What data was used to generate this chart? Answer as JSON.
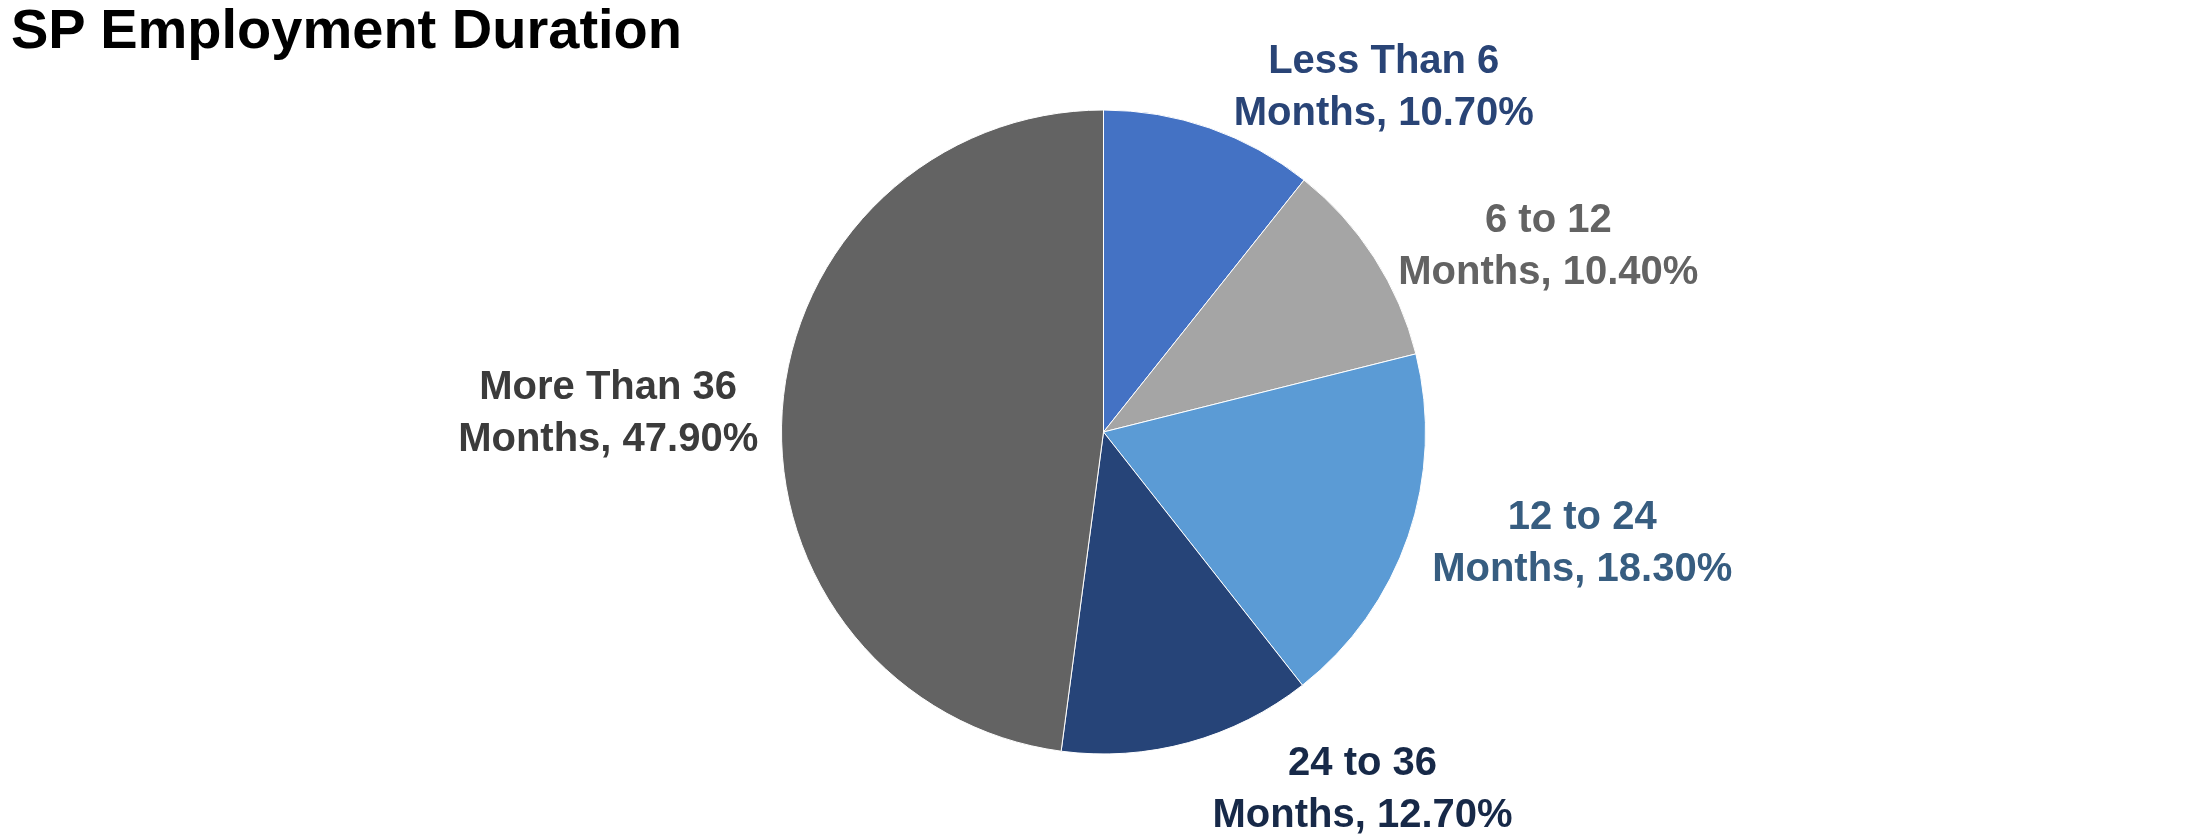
{
  "chart_data": {
    "type": "pie",
    "title": "SP Employment Duration",
    "categories": [
      "Less Than 6 Months",
      "6 to 12 Months",
      "12 to 24 Months",
      "24 to 36 Months",
      "More Than 36 Months"
    ],
    "values": [
      10.7,
      10.4,
      18.3,
      12.7,
      47.9
    ],
    "value_labels": [
      "10.70%",
      "10.40%",
      "18.30%",
      "12.70%",
      "47.90%"
    ],
    "colors": [
      "#4472c4",
      "#a5a5a5",
      "#5b9bd5",
      "#264478",
      "#636363"
    ],
    "legend": false
  }
}
